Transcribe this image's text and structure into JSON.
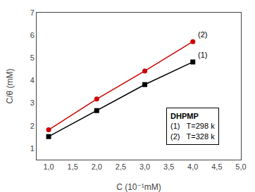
{
  "chart_data": {
    "type": "line",
    "x": [
      1.0,
      2.0,
      3.0,
      4.0
    ],
    "series": [
      {
        "color": "#000000",
        "marker": "square",
        "line_style": "solid",
        "values": [
          1.52,
          2.67,
          3.82,
          4.82
        ]
      },
      {
        "color": "#cc0000",
        "marker": "circle",
        "line_style": "solid",
        "values": [
          1.82,
          3.18,
          4.42,
          5.72
        ]
      }
    ],
    "x_label": "C (10⁻¹mM)",
    "y_label": "C/θ (mM)",
    "xlim": [
      0.75,
      5.0
    ],
    "ylim": [
      0.5,
      7.0
    ],
    "xticks": [
      {
        "value": 1.0,
        "label": "1,0"
      },
      {
        "value": 1.5,
        "label": "1,5"
      },
      {
        "value": 2.0,
        "label": "2,0"
      },
      {
        "value": 2.5,
        "label": "2,5"
      },
      {
        "value": 3.0,
        "label": "3,0"
      },
      {
        "value": 3.5,
        "label": "3,5"
      },
      {
        "value": 4.0,
        "label": "4,0"
      },
      {
        "value": 4.5,
        "label": "4,5"
      },
      {
        "value": 5.0,
        "label": "5,0"
      }
    ],
    "yticks": [
      1,
      2,
      3,
      4,
      5,
      6,
      7
    ],
    "grid": false,
    "annotations": [
      {
        "text": "(2)",
        "x": 4.08,
        "y": 5.8
      },
      {
        "text": "(1)",
        "x": 4.08,
        "y": 4.9
      }
    ],
    "legend_box": {
      "title": "DHPMP",
      "lines": [
        "(1)   T=298 k",
        "(2)   T=328 k"
      ]
    }
  }
}
